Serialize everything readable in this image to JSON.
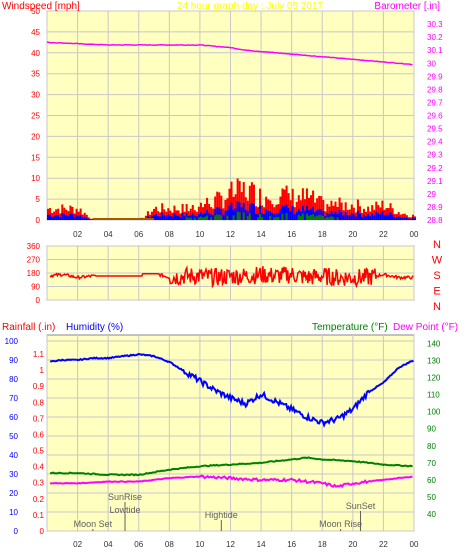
{
  "colors": {
    "page_bg": "#ffffff",
    "plot_bg": "#ffffc0",
    "grid": "#c8c8c8",
    "wind": "#ff0000",
    "gust_mid": "#0000ff",
    "gust_low": "#008000",
    "barometer": "#ff00ff",
    "direction": "#ff0000",
    "humidity": "#0000ff",
    "temperature": "#008000",
    "dewpoint": "#ff00ff",
    "title": "#ffff00",
    "annotation": "#606060"
  },
  "chart_data": [
    {
      "type": "line",
      "title": "24 hour graph day : July 05 2017",
      "left_label": "Windspeed [mph]",
      "right_label": "Barometer [.in]",
      "x_ticks": [
        "02",
        "04",
        "06",
        "08",
        "10",
        "12",
        "14",
        "16",
        "18",
        "20",
        "22",
        "00"
      ],
      "y_left": {
        "min": 0,
        "max": 50,
        "ticks": [
          "0",
          "5",
          "10",
          "15",
          "20",
          "25",
          "30",
          "35",
          "40",
          "45",
          "50"
        ]
      },
      "y_right": {
        "min": 28.8,
        "max": 30.4,
        "ticks": [
          "28.8",
          "28.9",
          "29",
          "29.1",
          "29.2",
          "29.3",
          "29.4",
          "29.5",
          "29.6",
          "29.7",
          "29.8",
          "29.9",
          "30",
          "30.1",
          "30.2",
          "30.3"
        ]
      },
      "series": [
        {
          "key": "barometer",
          "axis": "right",
          "hours": [
            0,
            2,
            4,
            6,
            8,
            10,
            11,
            12,
            13,
            14,
            15,
            16,
            17,
            18,
            19,
            20,
            21,
            22,
            23,
            24
          ],
          "values": [
            30.16,
            30.15,
            30.14,
            30.14,
            30.14,
            30.14,
            30.13,
            30.12,
            30.1,
            30.09,
            30.08,
            30.07,
            30.06,
            30.05,
            30.04,
            30.03,
            30.02,
            30.01,
            30.0,
            29.99
          ]
        },
        {
          "key": "wind",
          "axis": "left",
          "hours": [
            0,
            1,
            2,
            3,
            4,
            5,
            6,
            7,
            8,
            9,
            10,
            11,
            12,
            13,
            14,
            15,
            16,
            17,
            18,
            19,
            20,
            21,
            22,
            23,
            24
          ],
          "values": [
            3,
            3,
            3,
            0,
            0,
            0,
            0,
            3,
            3,
            3,
            4,
            5,
            7,
            8,
            6,
            7,
            6,
            6,
            4,
            4,
            4,
            3,
            4,
            2,
            1
          ]
        }
      ]
    },
    {
      "type": "line",
      "right_labels": [
        "N",
        "W",
        "S",
        "E",
        "N"
      ],
      "y_left": {
        "min": 0,
        "max": 360,
        "ticks": [
          "0",
          "90",
          "180",
          "270",
          "360"
        ]
      },
      "series": [
        {
          "key": "direction",
          "hours": [
            0,
            1,
            2,
            3,
            4,
            5,
            6,
            7,
            8,
            9,
            10,
            11,
            12,
            13,
            14,
            15,
            16,
            17,
            18,
            19,
            20,
            21,
            22,
            23,
            24
          ],
          "values": [
            160,
            170,
            150,
            160,
            160,
            160,
            180,
            180,
            150,
            160,
            160,
            150,
            160,
            160,
            170,
            160,
            170,
            150,
            160,
            150,
            150,
            150,
            170,
            150,
            150
          ]
        }
      ]
    },
    {
      "type": "line",
      "labels": {
        "rainfall": "Rainfall (.in)",
        "humidity": "Humidity (%)",
        "temperature": "Temperature (°F)",
        "dewpoint": "Dew Point (°F)"
      },
      "x_ticks": [
        "02",
        "04",
        "06",
        "08",
        "10",
        "12",
        "14",
        "16",
        "18",
        "20",
        "22",
        "00"
      ],
      "y_rain": {
        "min": 0,
        "max": 1.1,
        "ticks": [
          "0",
          "0.1",
          "0.2",
          "0.3",
          "0.4",
          "0.5",
          "0.6",
          "0.7",
          "0.8",
          "0.9",
          "1",
          "1.1"
        ]
      },
      "y_humidity": {
        "min": 0,
        "max": 100,
        "ticks": [
          "0",
          "10",
          "20",
          "30",
          "40",
          "50",
          "60",
          "70",
          "80",
          "90",
          "100"
        ]
      },
      "y_temp": {
        "min": 30,
        "max": 145,
        "ticks": [
          "40",
          "50",
          "60",
          "70",
          "80",
          "90",
          "100",
          "110",
          "120",
          "130",
          "140"
        ]
      },
      "series": [
        {
          "key": "humidity",
          "axis": "humidity",
          "hours": [
            0,
            1,
            2,
            3,
            4,
            5,
            6,
            7,
            8,
            9,
            10,
            11,
            12,
            13,
            14,
            15,
            16,
            17,
            18,
            19,
            20,
            21,
            22,
            23,
            24
          ],
          "values": [
            89,
            90,
            90,
            91,
            91,
            92,
            93,
            92,
            89,
            84,
            79,
            74,
            70,
            67,
            72,
            68,
            64,
            60,
            57,
            59,
            64,
            73,
            78,
            86,
            90
          ]
        },
        {
          "key": "temperature",
          "axis": "temp",
          "hours": [
            0,
            2,
            4,
            6,
            8,
            10,
            12,
            14,
            16,
            17,
            18,
            20,
            22,
            24
          ],
          "values": [
            64,
            64,
            63,
            63,
            66,
            68,
            69,
            70,
            72,
            73,
            72,
            71,
            69,
            68
          ]
        },
        {
          "key": "dewpoint",
          "axis": "temp",
          "hours": [
            0,
            2,
            4,
            6,
            8,
            10,
            12,
            14,
            16,
            18,
            19,
            20,
            22,
            24
          ],
          "values": [
            58,
            58,
            59,
            59,
            61,
            62,
            61,
            60,
            60,
            58,
            56,
            58,
            60,
            62
          ]
        }
      ],
      "annotations": [
        {
          "text": "SunRise",
          "hour": 5.1
        },
        {
          "text": "Lowtide",
          "hour": 5.1
        },
        {
          "text": "Moon Set",
          "hour": 3.0
        },
        {
          "text": "Hightide",
          "hour": 11.4
        },
        {
          "text": "SunSet",
          "hour": 20.5
        },
        {
          "text": "Moon Rise",
          "hour": 19.2
        }
      ]
    }
  ]
}
